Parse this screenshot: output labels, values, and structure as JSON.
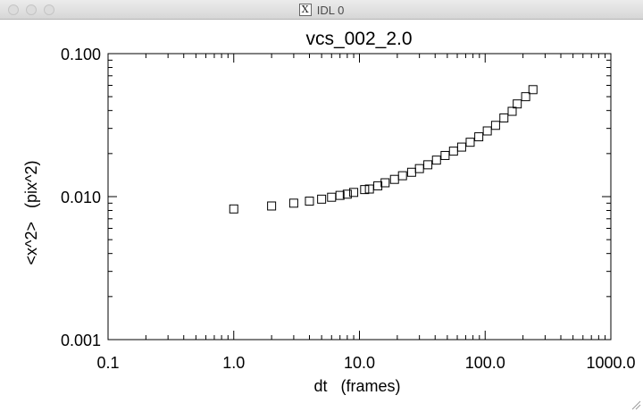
{
  "window": {
    "title": "IDL 0",
    "icon": "x11-icon"
  },
  "chart_data": {
    "type": "scatter",
    "title": "vcs_002_2.0",
    "xlabel": "dt   (frames)",
    "ylabel": "<x^2>   (pix^2)",
    "x_scale": "log",
    "y_scale": "log",
    "xlim": [
      0.1,
      1000
    ],
    "ylim": [
      0.001,
      0.1
    ],
    "x_ticks": [
      {
        "value": 0.1,
        "label": "0.1"
      },
      {
        "value": 1,
        "label": "1.0"
      },
      {
        "value": 10,
        "label": "10.0"
      },
      {
        "value": 100,
        "label": "100.0"
      },
      {
        "value": 1000,
        "label": "1000.0"
      }
    ],
    "y_ticks": [
      {
        "value": 0.001,
        "label": "0.001"
      },
      {
        "value": 0.01,
        "label": "0.010"
      },
      {
        "value": 0.1,
        "label": "0.100"
      }
    ],
    "grid": false,
    "marker": "square",
    "color": "#000000",
    "points": [
      {
        "x": 1.0,
        "y": 0.0082
      },
      {
        "x": 2.0,
        "y": 0.0086
      },
      {
        "x": 3.0,
        "y": 0.009
      },
      {
        "x": 4.0,
        "y": 0.0093
      },
      {
        "x": 5.0,
        "y": 0.0096
      },
      {
        "x": 6.0,
        "y": 0.0099
      },
      {
        "x": 7.0,
        "y": 0.0102
      },
      {
        "x": 8.0,
        "y": 0.0104
      },
      {
        "x": 9.0,
        "y": 0.0107
      },
      {
        "x": 11.0,
        "y": 0.0112
      },
      {
        "x": 12.0,
        "y": 0.0113
      },
      {
        "x": 14.0,
        "y": 0.0119
      },
      {
        "x": 16.0,
        "y": 0.0125
      },
      {
        "x": 19.0,
        "y": 0.0132
      },
      {
        "x": 22.0,
        "y": 0.014
      },
      {
        "x": 26.0,
        "y": 0.0148
      },
      {
        "x": 30.0,
        "y": 0.0157
      },
      {
        "x": 35.0,
        "y": 0.0167
      },
      {
        "x": 41.0,
        "y": 0.018
      },
      {
        "x": 48.0,
        "y": 0.0194
      },
      {
        "x": 56.0,
        "y": 0.0208
      },
      {
        "x": 65.0,
        "y": 0.0222
      },
      {
        "x": 76.0,
        "y": 0.024
      },
      {
        "x": 89.0,
        "y": 0.0262
      },
      {
        "x": 104.0,
        "y": 0.0288
      },
      {
        "x": 121.0,
        "y": 0.0315
      },
      {
        "x": 141.0,
        "y": 0.0355
      },
      {
        "x": 164.0,
        "y": 0.0395
      },
      {
        "x": 180.0,
        "y": 0.0445
      },
      {
        "x": 210.0,
        "y": 0.05
      },
      {
        "x": 240.0,
        "y": 0.056
      }
    ]
  }
}
